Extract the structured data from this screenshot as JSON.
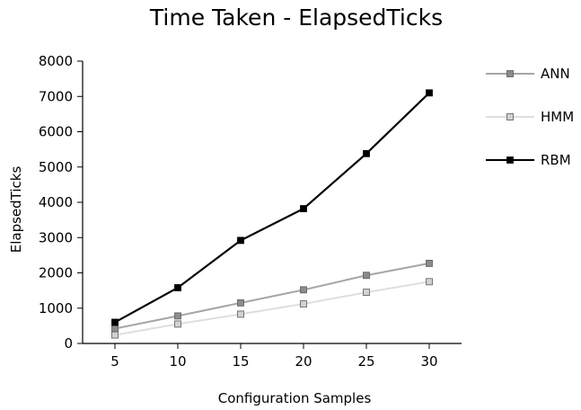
{
  "chart_data": {
    "type": "line",
    "title": "Time Taken - ElapsedTicks",
    "xlabel": "Configuration Samples",
    "ylabel": "ElapsedTicks",
    "x": [
      5,
      10,
      15,
      20,
      25,
      30
    ],
    "ylim": [
      0,
      8000
    ],
    "yticks": [
      0,
      1000,
      2000,
      3000,
      4000,
      5000,
      6000,
      7000,
      8000
    ],
    "grid": false,
    "legend_position": "right",
    "series": [
      {
        "name": "ANN",
        "color": "#a6a6a6",
        "marker_fill": "#8c8c8c",
        "values": [
          420,
          780,
          1150,
          1520,
          1930,
          2270
        ]
      },
      {
        "name": "HMM",
        "color": "#dedede",
        "marker_fill": "#d2d2d2",
        "values": [
          240,
          550,
          830,
          1120,
          1450,
          1750
        ]
      },
      {
        "name": "RBM",
        "color": "#000000",
        "marker_fill": "#000000",
        "values": [
          600,
          1580,
          2920,
          3820,
          5380,
          7100
        ]
      }
    ]
  }
}
